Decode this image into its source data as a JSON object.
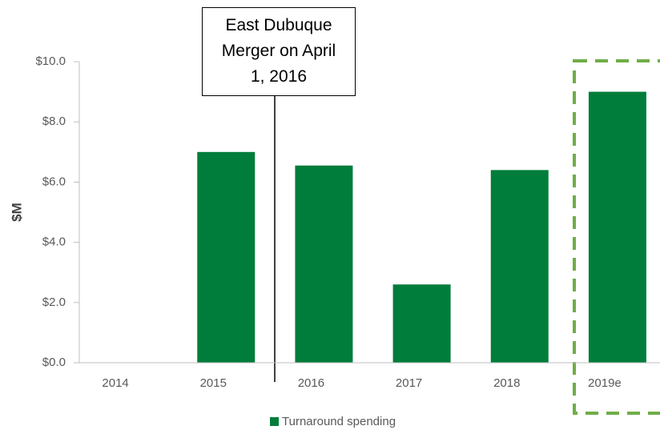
{
  "chart_data": {
    "type": "bar",
    "categories": [
      "2014",
      "2015",
      "2016",
      "2017",
      "2018",
      "2019e"
    ],
    "series": [
      {
        "name": "Turnaround spending",
        "color": "#007d3a",
        "values": [
          0,
          7.0,
          6.55,
          2.6,
          6.4,
          9.0
        ]
      }
    ],
    "ylabel": "$M",
    "ylim": [
      0,
      10
    ],
    "yticks": [
      {
        "value": 0,
        "label": "$0.0"
      },
      {
        "value": 2,
        "label": "$2.0"
      },
      {
        "value": 4,
        "label": "$4.0"
      },
      {
        "value": 6,
        "label": "$6.0"
      },
      {
        "value": 8,
        "label": "$8.0"
      },
      {
        "value": 10,
        "label": "$10.0"
      }
    ],
    "annotation": "East Dubuque Merger on April 1, 2016",
    "grid": false,
    "legend": "bottom"
  }
}
